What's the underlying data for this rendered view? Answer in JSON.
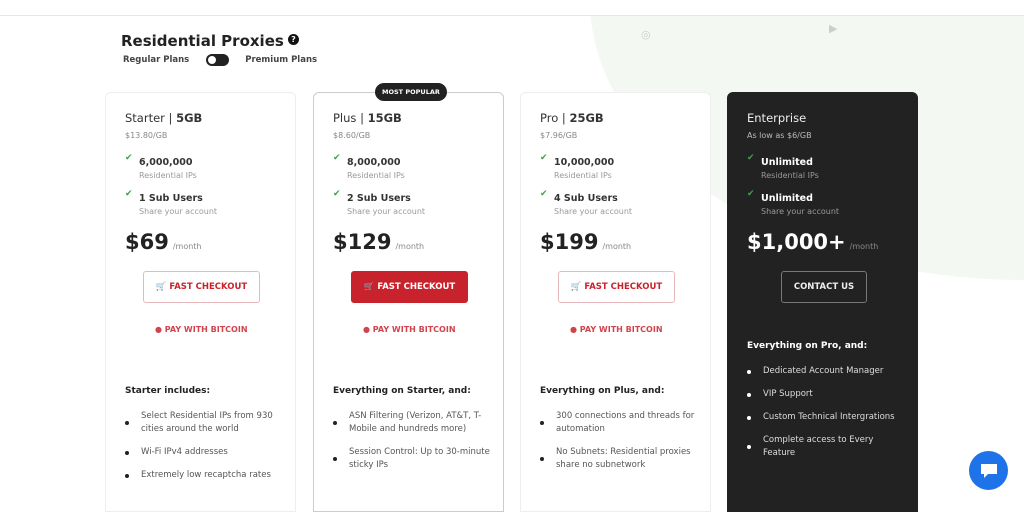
{
  "header": {
    "title": "Residential Proxies",
    "toggle_left": "Regular Plans",
    "toggle_right": "Premium Plans"
  },
  "plans": [
    {
      "name": "Starter",
      "size": "5GB",
      "per_gb": "$13.80/GB",
      "ips": "6,000,000",
      "ips_sub": "Residential IPs",
      "users": "1 Sub Users",
      "users_sub": "Share your account",
      "price": "$69",
      "period": "/month",
      "button": "FAST CHECKOUT",
      "bitcoin": "PAY WITH BITCOIN",
      "includes": "Starter includes:",
      "features": [
        "Select Residential IPs from 930 cities around the world",
        "Wi-Fi IPv4 addresses",
        "Extremely low recaptcha rates"
      ]
    },
    {
      "name": "Plus",
      "size": "15GB",
      "badge": "MOST POPULAR",
      "per_gb": "$8.60/GB",
      "ips": "8,000,000",
      "ips_sub": "Residential IPs",
      "users": "2 Sub Users",
      "users_sub": "Share your account",
      "price": "$129",
      "period": "/month",
      "button": "FAST CHECKOUT",
      "bitcoin": "PAY WITH BITCOIN",
      "includes": "Everything on Starter, and:",
      "features": [
        "ASN Filtering (Verizon, AT&T, T-Mobile and hundreds more)",
        "Session Control: Up to 30-minute sticky IPs"
      ]
    },
    {
      "name": "Pro",
      "size": "25GB",
      "per_gb": "$7.96/GB",
      "ips": "10,000,000",
      "ips_sub": "Residential IPs",
      "users": "4 Sub Users",
      "users_sub": "Share your account",
      "price": "$199",
      "period": "/month",
      "button": "FAST CHECKOUT",
      "bitcoin": "PAY WITH BITCOIN",
      "includes": "Everything on Plus, and:",
      "features": [
        "300 connections and threads for automation",
        "No Subnets: Residential proxies share no subnetwork"
      ]
    },
    {
      "name": "Enterprise",
      "per_gb": "As low as $6/GB",
      "ips": "Unlimited",
      "ips_sub": "Residential IPs",
      "users": "Unlimited",
      "users_sub": "Share your account",
      "price": "$1,000+",
      "period": "/month",
      "button": "CONTACT US",
      "includes": "Everything on Pro, and:",
      "features": [
        "Dedicated Account Manager",
        "VIP Support",
        "Custom Technical Intergrations",
        "Complete access to Every Feature"
      ]
    }
  ],
  "colors": {
    "accent": "#c8232c",
    "dark_card": "#222222",
    "check": "#3aa34a",
    "chat": "#1e73e8"
  }
}
